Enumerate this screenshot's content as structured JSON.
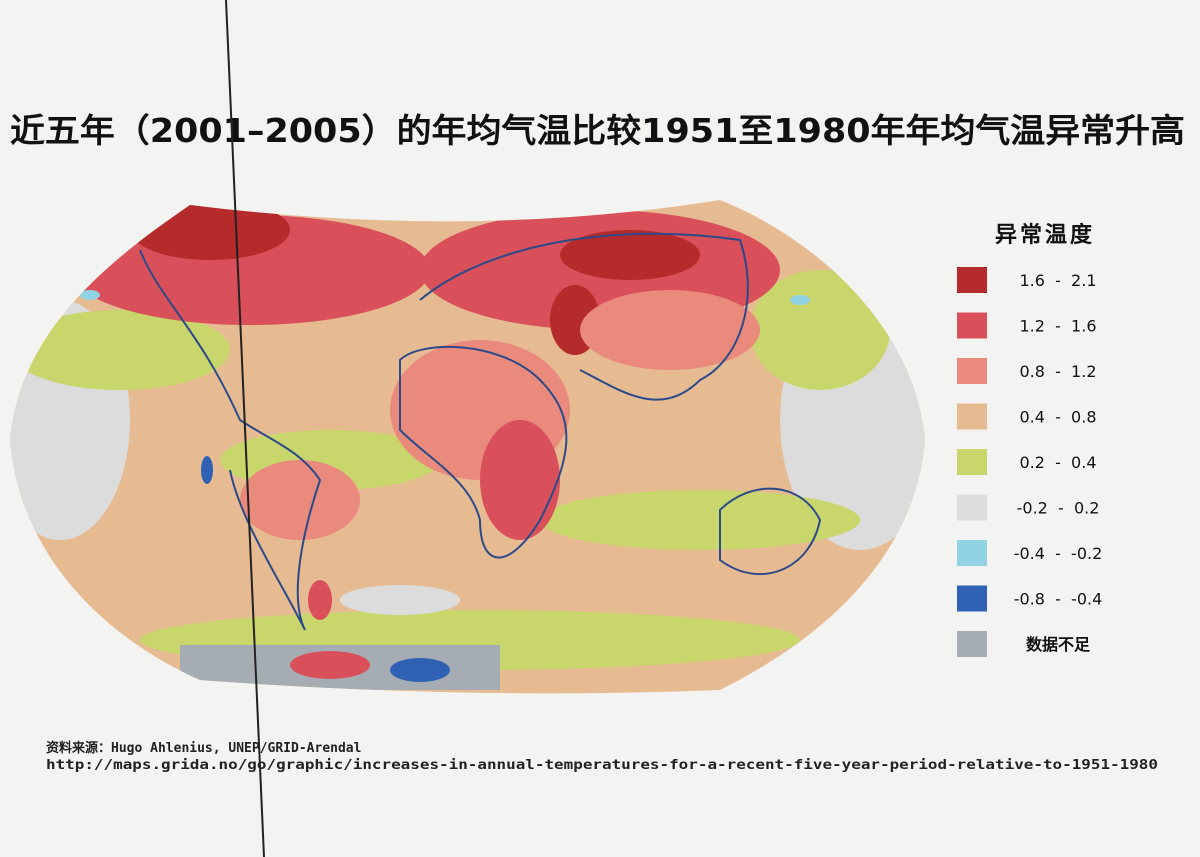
{
  "title": "近五年（2001–2005）的年均气温比较1951至1980年年均气温异常升高",
  "legend": {
    "title": "异常温度",
    "items": [
      {
        "label": "1.6  -  2.1",
        "color": "#b52a2a"
      },
      {
        "label": "1.2  -  1.6",
        "color": "#d9505a"
      },
      {
        "label": "0.8  -  1.2",
        "color": "#e98a7c"
      },
      {
        "label": "0.4  -  0.8",
        "color": "#e6bb92"
      },
      {
        "label": "0.2  -  0.4",
        "color": "#c9d66c"
      },
      {
        "label": "-0.2  -  0.2",
        "color": "#dcdcdc"
      },
      {
        "label": "-0.4  -  -0.2",
        "color": "#92d3e3"
      },
      {
        "label": "-0.8  -  -0.4",
        "color": "#2f62b5"
      },
      {
        "label": "数据不足",
        "color": "#a6acb3"
      }
    ]
  },
  "source": {
    "line1": "资料来源：Hugo Ahlenius, UNEP/GRID-Arendal",
    "line2": "http://maps.grida.no/go/graphic/increases-in-annual-temperatures-for-a-recent-five-year-period-relative-to-1951-1980"
  }
}
